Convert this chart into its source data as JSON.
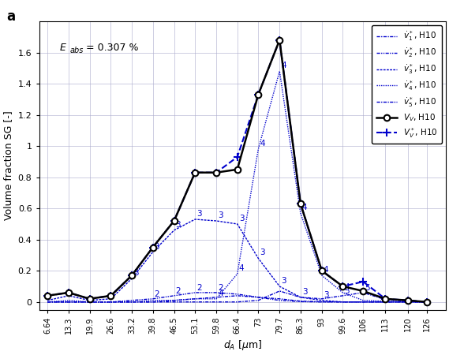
{
  "x": [
    6.64,
    13.3,
    19.9,
    26.6,
    33.2,
    39.8,
    46.5,
    53.1,
    59.8,
    66.4,
    73.0,
    79.7,
    86.3,
    93.0,
    99.6,
    106.0,
    113.0,
    120.0,
    126.0
  ],
  "VV": [
    0.04,
    0.06,
    0.02,
    0.04,
    0.17,
    0.35,
    0.52,
    0.83,
    0.83,
    0.85,
    1.33,
    1.68,
    0.63,
    0.2,
    0.1,
    0.07,
    0.02,
    0.01,
    0.0
  ],
  "VV_star": [
    0.04,
    0.06,
    0.02,
    0.04,
    0.17,
    0.35,
    0.52,
    0.83,
    0.83,
    0.93,
    1.33,
    1.68,
    0.63,
    0.2,
    0.1,
    0.13,
    0.02,
    0.01,
    0.0
  ],
  "v1": [
    0.0,
    0.0,
    0.0,
    0.0,
    0.0,
    0.0,
    0.01,
    0.02,
    0.03,
    0.04,
    0.03,
    0.02,
    0.005,
    0.001,
    0.0,
    0.0,
    0.0,
    0.0,
    0.0
  ],
  "v2": [
    0.0,
    0.0,
    0.0,
    0.0,
    0.01,
    0.02,
    0.04,
    0.06,
    0.06,
    0.05,
    0.03,
    0.01,
    0.002,
    0.0,
    0.0,
    0.0,
    0.0,
    0.0,
    0.0
  ],
  "v3": [
    0.01,
    0.04,
    0.01,
    0.02,
    0.15,
    0.32,
    0.46,
    0.53,
    0.52,
    0.5,
    0.28,
    0.1,
    0.03,
    0.01,
    0.0,
    0.0,
    0.0,
    0.0,
    0.0
  ],
  "v4": [
    0.0,
    0.01,
    0.0,
    0.0,
    0.0,
    0.01,
    0.01,
    0.02,
    0.02,
    0.18,
    0.98,
    1.48,
    0.57,
    0.17,
    0.06,
    0.01,
    0.005,
    0.0,
    0.0
  ],
  "v5": [
    0.0,
    0.0,
    0.0,
    0.0,
    0.0,
    0.0,
    0.0,
    0.0,
    0.0,
    0.0,
    0.01,
    0.07,
    0.03,
    0.02,
    0.04,
    0.06,
    0.015,
    0.005,
    0.0
  ],
  "title_label": "a",
  "annotation_text": "E",
  "annotation_sub": "abs",
  "annotation_val": " = 0.307 %",
  "xlabel": "$d_A$ [$\\mu$m]",
  "ylabel": "Volume fraction SG [-]",
  "xlim": [
    4.0,
    132.0
  ],
  "ylim": [
    -0.05,
    1.8
  ],
  "xtick_labels": [
    "6.64",
    "13.3",
    "19.9",
    "26.6",
    "33.2",
    "39.8",
    "46.5",
    "53.1",
    "59.8",
    "66.4",
    "73",
    "79.7",
    "86.3",
    "93",
    "99.6",
    "106",
    "113",
    "120",
    "126"
  ],
  "xticks": [
    6.64,
    13.3,
    19.9,
    26.6,
    33.2,
    39.8,
    46.5,
    53.1,
    59.8,
    66.4,
    73.0,
    79.7,
    86.3,
    93.0,
    99.6,
    106.0,
    113.0,
    120.0,
    126.0
  ],
  "yticks": [
    0.0,
    0.2,
    0.4,
    0.6,
    0.8,
    1.0,
    1.2,
    1.4,
    1.6
  ],
  "ytick_labels": [
    "0",
    "0.2",
    "0.4",
    "0.6",
    "0.8",
    "1",
    "1.2",
    "1.4",
    "1.6"
  ],
  "color_blue": "#0000CD",
  "color_black": "#000000",
  "background_color": "#FFFFFF"
}
